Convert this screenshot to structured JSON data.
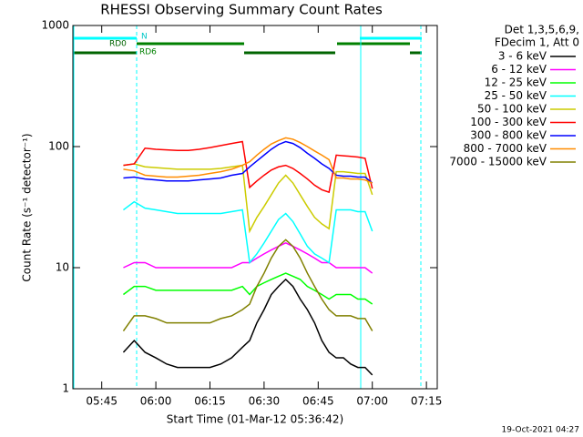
{
  "chart_data": {
    "type": "line",
    "title": "RHESSI Observing Summary Count Rates",
    "xlabel": "Start Time (01-Mar-12 05:36:42)",
    "ylabel": "Count Rate (s⁻¹ detector⁻¹)",
    "legend_header": [
      "Det 1,3,5,6,9,",
      "FDecim 1, Att 0"
    ],
    "annotations": [
      "RD0",
      "RD6",
      "N"
    ],
    "footer": "19-Oct-2021 04:27",
    "log_y": true,
    "xlim": [
      337,
      438
    ],
    "ylim": [
      1,
      1000
    ],
    "xticks": [
      {
        "value": 345,
        "label": "05:45"
      },
      {
        "value": 360,
        "label": "06:00"
      },
      {
        "value": 375,
        "label": "06:15"
      },
      {
        "value": 390,
        "label": "06:30"
      },
      {
        "value": 405,
        "label": "06:45"
      },
      {
        "value": 420,
        "label": "07:00"
      },
      {
        "value": 435,
        "label": "07:15"
      }
    ],
    "yticks": [
      1,
      10,
      100,
      1000
    ],
    "x": [
      351,
      354,
      357,
      360,
      363,
      366,
      369,
      372,
      375,
      378,
      381,
      384,
      386,
      388,
      390,
      392,
      394,
      396,
      398,
      400,
      402,
      404,
      406,
      408,
      410,
      412,
      414,
      416,
      418,
      420
    ],
    "series": [
      {
        "name": "3 - 6 keV",
        "color": "#000000",
        "values": [
          2,
          2.5,
          2,
          1.8,
          1.6,
          1.5,
          1.5,
          1.5,
          1.5,
          1.6,
          1.8,
          2.2,
          2.5,
          3.5,
          4.5,
          6,
          7,
          8,
          7,
          5.5,
          4.5,
          3.5,
          2.5,
          2,
          1.8,
          1.8,
          1.6,
          1.5,
          1.5,
          1.3
        ]
      },
      {
        "name": "6 - 12 keV",
        "color": "#ff00ff",
        "values": [
          10,
          11,
          11,
          10,
          10,
          10,
          10,
          10,
          10,
          10,
          10,
          11,
          11,
          12,
          13,
          14,
          15,
          16,
          15,
          14,
          13,
          12,
          11,
          11,
          10,
          10,
          10,
          10,
          10,
          9
        ]
      },
      {
        "name": "12 - 25 keV",
        "color": "#00ff00",
        "values": [
          6,
          7,
          7,
          6.5,
          6.5,
          6.5,
          6.5,
          6.5,
          6.5,
          6.5,
          6.5,
          7,
          6,
          7,
          7.5,
          8,
          8.5,
          9,
          8.5,
          8,
          7,
          6.5,
          6,
          5.5,
          6,
          6,
          6,
          5.5,
          5.5,
          5
        ]
      },
      {
        "name": "25 - 50 keV",
        "color": "#00ffff",
        "values": [
          30,
          35,
          31,
          30,
          29,
          28,
          28,
          28,
          28,
          28,
          29,
          30,
          11,
          13,
          16,
          20,
          25,
          28,
          24,
          19,
          15,
          13,
          12,
          11,
          30,
          30,
          30,
          29,
          29,
          20
        ]
      },
      {
        "name": "50 - 100 keV",
        "color": "#cccc00",
        "values": [
          70,
          72,
          68,
          67,
          66,
          65,
          65,
          65,
          65,
          66,
          68,
          70,
          20,
          26,
          32,
          40,
          50,
          58,
          50,
          40,
          32,
          26,
          23,
          21,
          62,
          62,
          61,
          60,
          60,
          40
        ]
      },
      {
        "name": "100 - 300 keV",
        "color": "#ff0000",
        "values": [
          70,
          72,
          97,
          95,
          94,
          93,
          93,
          95,
          98,
          102,
          106,
          110,
          46,
          52,
          58,
          64,
          68,
          70,
          66,
          60,
          54,
          48,
          44,
          42,
          85,
          84,
          83,
          82,
          80,
          45
        ]
      },
      {
        "name": "300 - 800 keV",
        "color": "#0000ff",
        "values": [
          55,
          56,
          54,
          53,
          52,
          52,
          52,
          53,
          54,
          55,
          58,
          60,
          68,
          76,
          85,
          95,
          104,
          110,
          106,
          98,
          88,
          80,
          72,
          66,
          58,
          57,
          57,
          56,
          56,
          50
        ]
      },
      {
        "name": "800 - 7000 keV",
        "color": "#ff8c00",
        "values": [
          65,
          63,
          58,
          57,
          56,
          56,
          57,
          58,
          60,
          62,
          65,
          70,
          75,
          85,
          95,
          105,
          112,
          118,
          115,
          108,
          100,
          92,
          85,
          78,
          55,
          55,
          54,
          54,
          53,
          50
        ]
      },
      {
        "name": "7000 - 15000 keV",
        "color": "#808000",
        "values": [
          3,
          4,
          4,
          3.8,
          3.5,
          3.5,
          3.5,
          3.5,
          3.5,
          3.8,
          4,
          4.5,
          5,
          7,
          9,
          12,
          15,
          17,
          15,
          12,
          9,
          7,
          5.5,
          4.5,
          4,
          4,
          4,
          3.8,
          3.8,
          3
        ]
      }
    ]
  }
}
